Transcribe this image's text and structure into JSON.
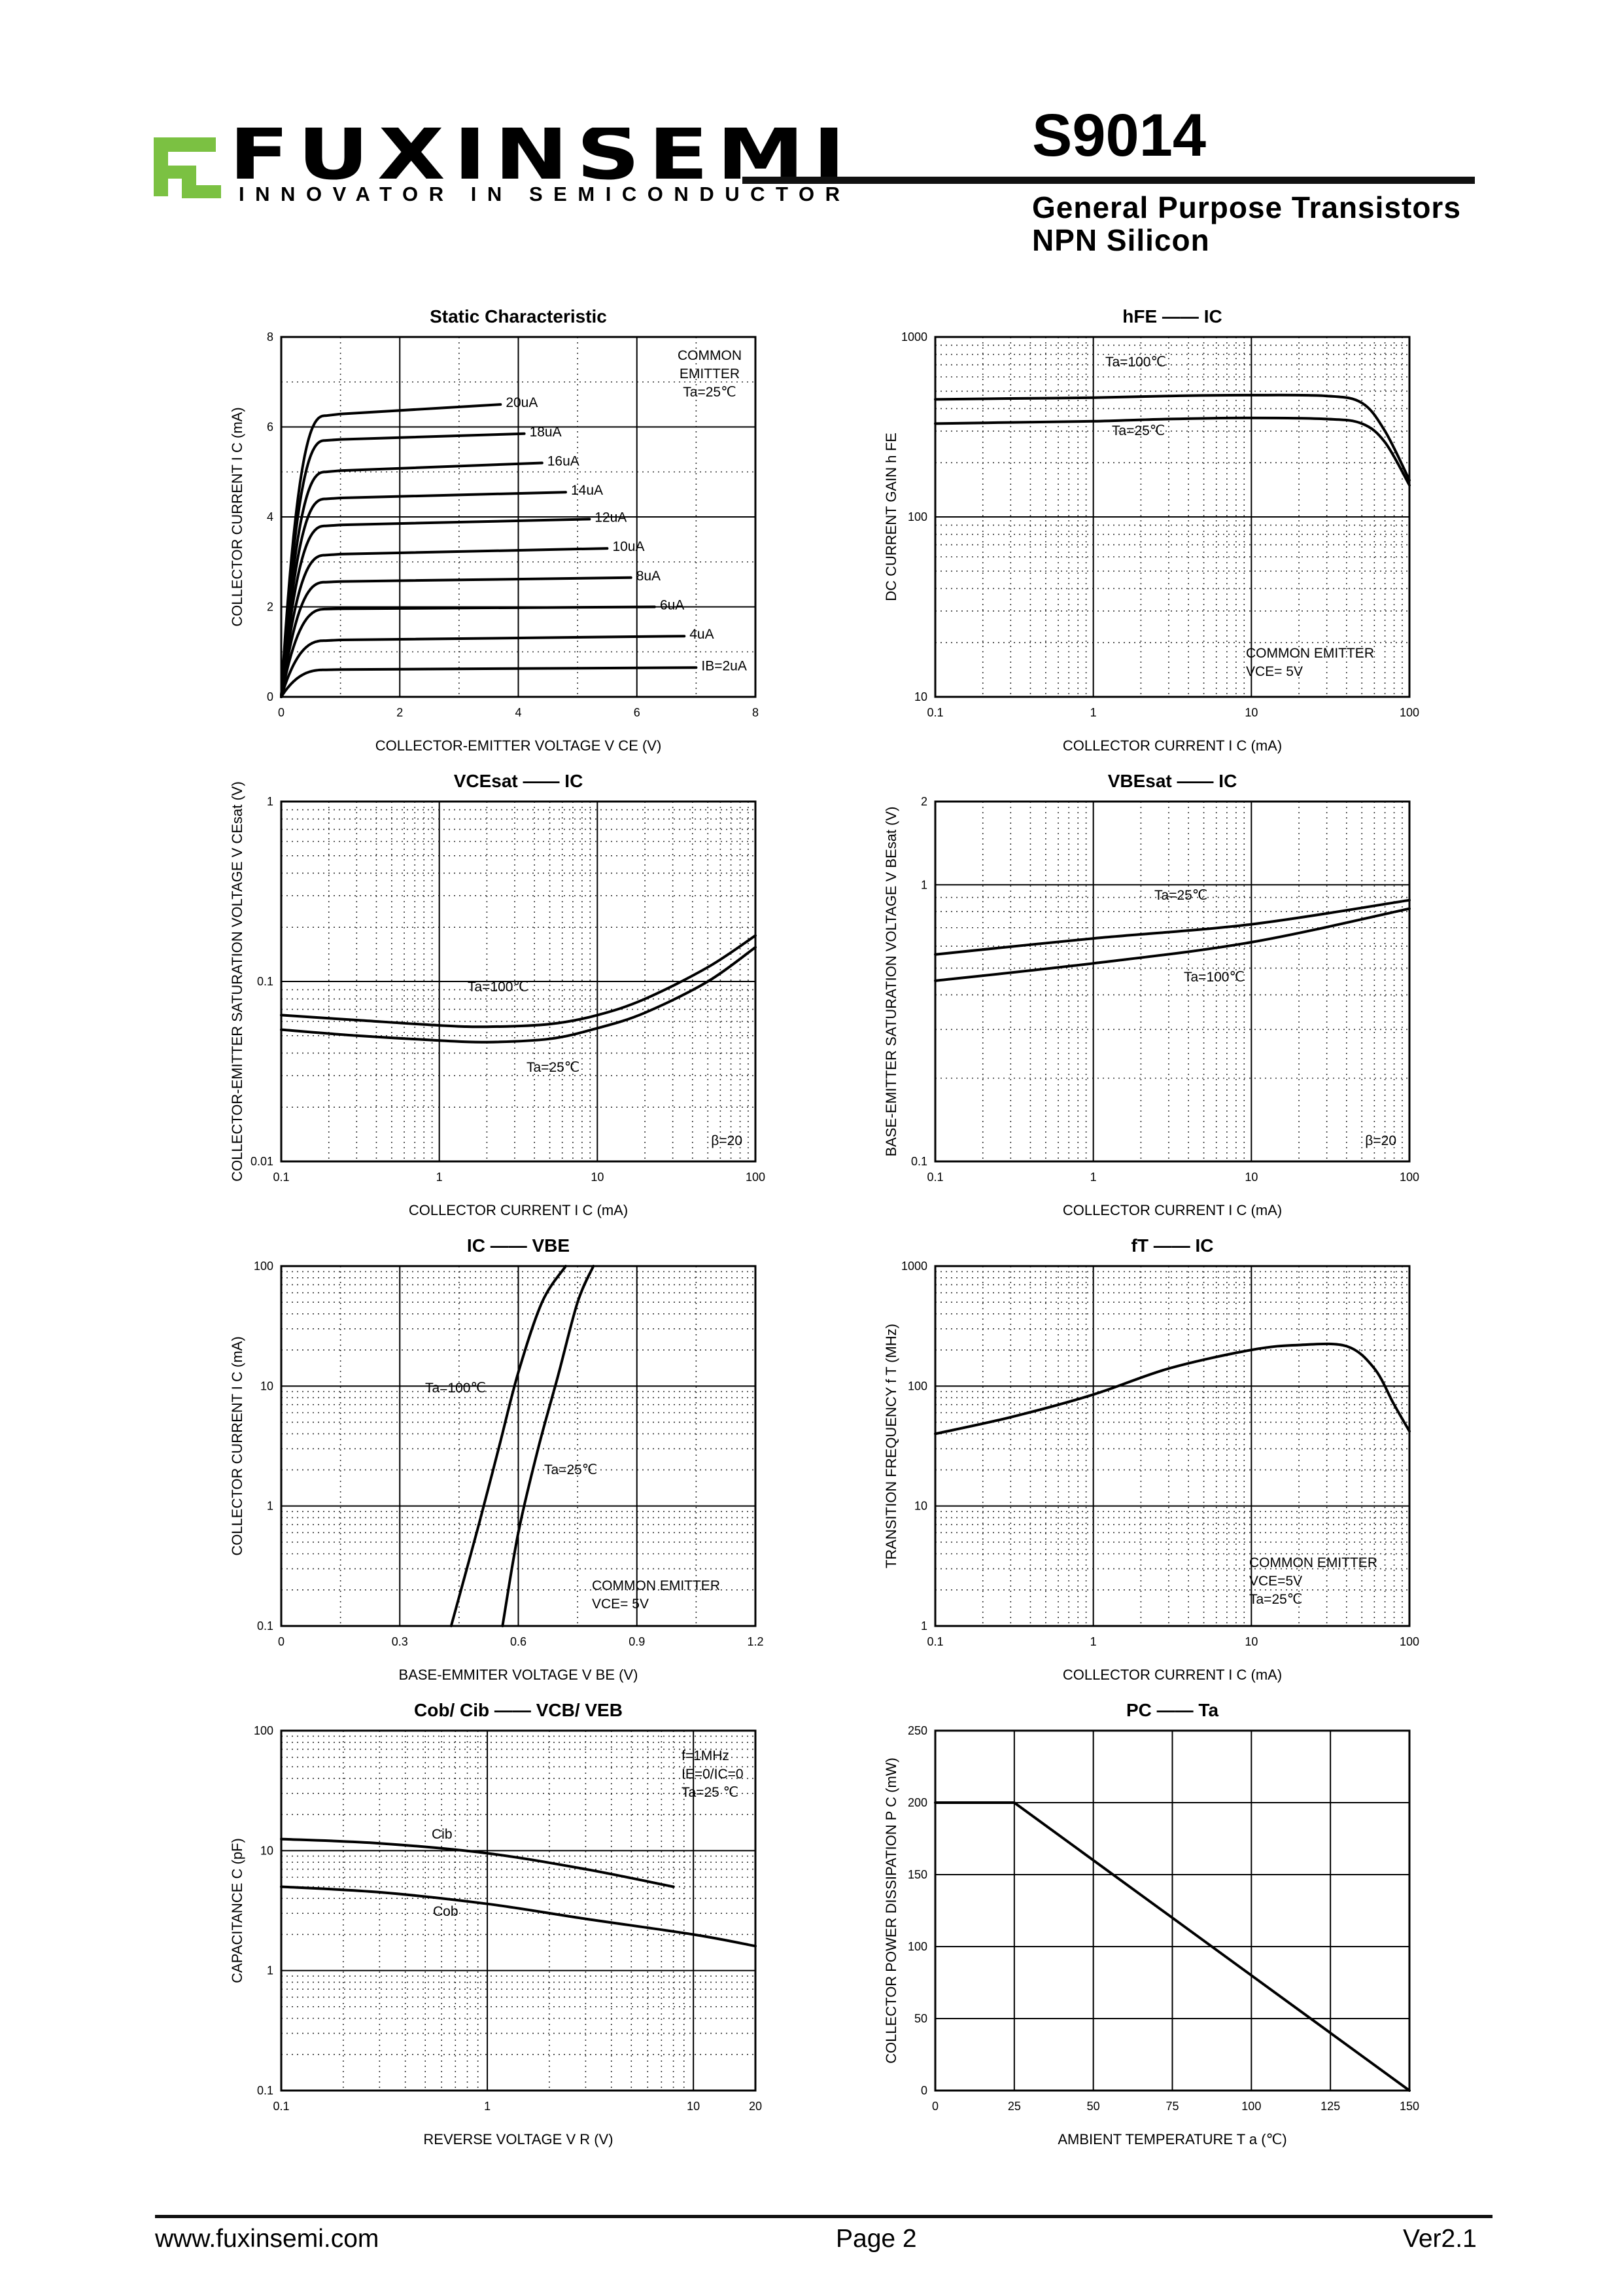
{
  "header": {
    "brand": "FUXINSEMI",
    "tagline": "INNOVATOR IN SEMICONDUCTOR",
    "part_number": "S9014",
    "subtitle_line1": "General Purpose Transistors",
    "subtitle_line2": "NPN Silicon",
    "logo_color": "#7bc142"
  },
  "footer": {
    "website": "www.fuxinsemi.com",
    "page": "Page 2",
    "version": "Ver2.1"
  },
  "chart_data": [
    {
      "type": "line",
      "title": "Static Characteristic",
      "xlabel": "COLLECTOR-EMITTER VOLTAGE   V CE  (V)",
      "ylabel": "COLLECTOR CURRENT   I C   (mA)",
      "xlim": [
        0,
        8
      ],
      "ylim": [
        0,
        8
      ],
      "xticks": [
        0,
        2,
        4,
        6,
        8
      ],
      "yticks": [
        0,
        2,
        4,
        6,
        8
      ],
      "annotation": [
        "COMMON",
        "EMITTER",
        "Ta=25℃"
      ],
      "series": [
        {
          "name": "20uA",
          "sat": 6.25,
          "end": 6.5,
          "xend": 3.7
        },
        {
          "name": "18uA",
          "sat": 5.7,
          "end": 5.85,
          "xend": 4.1
        },
        {
          "name": "16uA",
          "sat": 5.0,
          "end": 5.2,
          "xend": 4.4
        },
        {
          "name": "14uA",
          "sat": 4.4,
          "end": 4.55,
          "xend": 4.8
        },
        {
          "name": "12uA",
          "sat": 3.8,
          "end": 3.95,
          "xend": 5.2
        },
        {
          "name": "10uA",
          "sat": 3.15,
          "end": 3.3,
          "xend": 5.5
        },
        {
          "name": "8uA",
          "sat": 2.55,
          "end": 2.65,
          "xend": 5.9
        },
        {
          "name": "6uA",
          "sat": 1.95,
          "end": 2.0,
          "xend": 6.3
        },
        {
          "name": "4uA",
          "sat": 1.25,
          "end": 1.35,
          "xend": 6.8
        },
        {
          "name": "IB=2uA",
          "sat": 0.6,
          "end": 0.65,
          "xend": 7.0
        }
      ]
    },
    {
      "type": "line",
      "title": "hFE —— IC",
      "xlabel": "COLLECTOR CURRENT   I C  (mA)",
      "ylabel": "DC CURRENT GAIN   h FE",
      "xlim": [
        0.1,
        100
      ],
      "ylim": [
        10,
        1000
      ],
      "xscale": "log",
      "yscale": "log",
      "xticks": [
        0.1,
        1,
        10,
        100
      ],
      "yticks": [
        10,
        100,
        1000
      ],
      "annotation": [
        "COMMON EMITTER",
        "VCE= 5V"
      ],
      "series": [
        {
          "name": "Ta=100℃",
          "x": [
            0.1,
            0.3,
            1,
            3,
            10,
            30,
            50,
            70,
            100
          ],
          "y": [
            450,
            455,
            460,
            470,
            475,
            470,
            430,
            300,
            160
          ]
        },
        {
          "name": "Ta=25℃",
          "x": [
            0.1,
            0.3,
            1,
            3,
            10,
            30,
            50,
            70,
            100
          ],
          "y": [
            330,
            335,
            340,
            350,
            355,
            350,
            330,
            260,
            150
          ]
        }
      ]
    },
    {
      "type": "line",
      "title": "VCEsat —— IC",
      "xlabel": "COLLECTOR CURRENT   I C  (mA)",
      "ylabel": "COLLECTOR-EMITTER SATURATION VOLTAGE   V CEsat  (V)",
      "xlim": [
        0.1,
        100
      ],
      "ylim": [
        0.01,
        1
      ],
      "xscale": "log",
      "yscale": "log",
      "xticks": [
        0.1,
        1,
        10,
        100
      ],
      "yticks": [
        0.01,
        0.1,
        1
      ],
      "annotation": [
        "β=20"
      ],
      "series": [
        {
          "name": "Ta=100℃",
          "x": [
            0.1,
            0.3,
            1,
            2,
            5,
            10,
            20,
            50,
            100
          ],
          "y": [
            0.065,
            0.061,
            0.057,
            0.056,
            0.058,
            0.065,
            0.08,
            0.12,
            0.18
          ]
        },
        {
          "name": "Ta=25℃",
          "x": [
            0.1,
            0.3,
            1,
            2,
            5,
            10,
            20,
            50,
            100
          ],
          "y": [
            0.054,
            0.05,
            0.047,
            0.046,
            0.048,
            0.055,
            0.067,
            0.1,
            0.155
          ]
        }
      ]
    },
    {
      "type": "line",
      "title": "VBEsat —— IC",
      "xlabel": "COLLECTOR CURRENT   I C  (mA)",
      "ylabel": "BASE-EMITTER SATURATION VOLTAGE   V BEsat  (V)",
      "xlim": [
        0.1,
        100
      ],
      "ylim": [
        0.1,
        2
      ],
      "xscale": "log",
      "yscale": "log",
      "xticks": [
        0.1,
        1,
        10,
        100
      ],
      "yticks": [
        0.1,
        1,
        2
      ],
      "annotation": [
        "β=20"
      ],
      "series": [
        {
          "name": "Ta=25℃",
          "x": [
            0.1,
            1,
            10,
            100
          ],
          "y": [
            0.56,
            0.64,
            0.72,
            0.88
          ]
        },
        {
          "name": "Ta=100℃",
          "x": [
            0.1,
            1,
            10,
            100
          ],
          "y": [
            0.45,
            0.52,
            0.62,
            0.82
          ]
        }
      ]
    },
    {
      "type": "line",
      "title": "IC —— VBE",
      "xlabel": "BASE-EMMITER VOLTAGE   V BE  (V)",
      "ylabel": "COLLECTOR CURRENT   I C  (mA)",
      "xlim": [
        0,
        1.2
      ],
      "ylim": [
        0.1,
        100
      ],
      "yscale": "log",
      "xticks": [
        0.0,
        0.3,
        0.6,
        0.9,
        1.2
      ],
      "yticks": [
        0.1,
        1,
        10,
        100
      ],
      "annotation": [
        "COMMON EMITTER",
        "VCE= 5V"
      ],
      "series": [
        {
          "name": "Ta=100℃",
          "x": [
            0.43,
            0.5,
            0.55,
            0.6,
            0.66,
            0.72
          ],
          "y": [
            0.1,
            0.7,
            3,
            13,
            50,
            100
          ]
        },
        {
          "name": "Ta=25℃",
          "x": [
            0.56,
            0.6,
            0.65,
            0.7,
            0.75,
            0.79
          ],
          "y": [
            0.1,
            0.6,
            3,
            12,
            50,
            100
          ]
        }
      ]
    },
    {
      "type": "line",
      "title": "fT —— IC",
      "xlabel": "COLLECTOR CURRENT   I C  (mA)",
      "ylabel": "TRANSITION FREQUENCY   f T  (MHz)",
      "xlim": [
        0.1,
        100
      ],
      "ylim": [
        1,
        1000
      ],
      "xscale": "log",
      "yscale": "log",
      "xticks": [
        0.1,
        1,
        10,
        100
      ],
      "yticks": [
        1,
        10,
        100,
        1000
      ],
      "annotation": [
        "COMMON EMITTER",
        "VCE=5V",
        "Ta=25℃"
      ],
      "series": [
        {
          "name": "fT",
          "x": [
            0.1,
            0.3,
            1,
            3,
            10,
            20,
            40,
            60,
            80,
            100
          ],
          "y": [
            40,
            55,
            85,
            140,
            200,
            220,
            215,
            140,
            70,
            42
          ]
        }
      ]
    },
    {
      "type": "line",
      "title": "Cob/ Cib —— VCB/ VEB",
      "xlabel": "REVERSE VOLTAGE   V R  (V)",
      "ylabel": "CAPACITANCE   C  (pF)",
      "xlim": [
        0.1,
        20
      ],
      "ylim": [
        0.1,
        100
      ],
      "xscale": "log",
      "yscale": "log",
      "xticks": [
        0.1,
        1,
        10,
        20
      ],
      "yticks": [
        0.1,
        1,
        10,
        100
      ],
      "annotation": [
        "f=1MHz",
        "IE=0/IC=0",
        "Ta=25 ℃"
      ],
      "series": [
        {
          "name": "Cib",
          "x": [
            0.1,
            0.3,
            1,
            3,
            8
          ],
          "y": [
            12.5,
            11.5,
            9.5,
            7,
            5
          ]
        },
        {
          "name": "Cob",
          "x": [
            0.1,
            0.3,
            1,
            3,
            10,
            20
          ],
          "y": [
            5,
            4.5,
            3.6,
            2.7,
            2,
            1.6
          ]
        }
      ]
    },
    {
      "type": "line",
      "title": "PC —— Ta",
      "xlabel": "AMBIENT TEMPERATURE   T a  (℃)",
      "ylabel": "COLLECTOR POWER DISSIPATION   P C  (mW)",
      "xlim": [
        0,
        150
      ],
      "ylim": [
        0,
        250
      ],
      "xticks": [
        0,
        25,
        50,
        75,
        100,
        125,
        150
      ],
      "yticks": [
        0,
        50,
        100,
        150,
        200,
        250
      ],
      "series": [
        {
          "name": "PC",
          "x": [
            0,
            25,
            150
          ],
          "y": [
            200,
            200,
            0
          ]
        }
      ]
    }
  ]
}
